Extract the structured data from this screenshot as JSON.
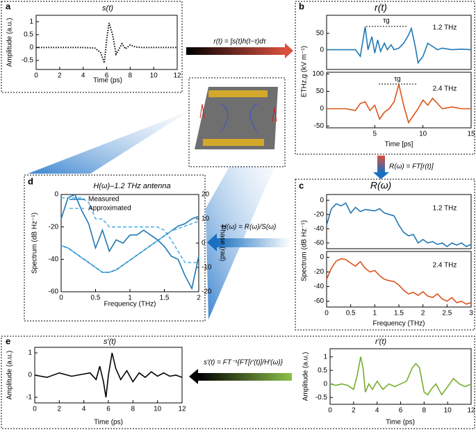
{
  "panel_labels": [
    "a",
    "b",
    "c",
    "d",
    "e"
  ],
  "equations": [
    "r(t) = ∫s(t)h(t−τ)dτ",
    "R(ω) = FT[r(t)]",
    "H(ω) = R(ω)/S(ω)",
    "s′(t) = FT⁻¹{FT[r′(t)]/H′(ω)}"
  ],
  "chart_data": [
    {
      "type": "line",
      "title": "s(t)",
      "xlabel": "Time (ps)",
      "ylabel": "Amplitude (a.u.)",
      "xlim": [
        0,
        12
      ],
      "ylim": [
        -0.85,
        1.25
      ],
      "xticks": [
        0,
        2,
        4,
        6,
        8,
        10,
        12
      ],
      "yticks": [
        -0.5,
        0,
        0.5,
        1
      ],
      "x": [
        0,
        1,
        2,
        3,
        4,
        5,
        5.5,
        5.8,
        6,
        6.2,
        6.5,
        6.8,
        7,
        7.3,
        7.6,
        8,
        8.5,
        9,
        10,
        11,
        12
      ],
      "series": [
        {
          "color": "#000000",
          "linestyle": "dotted",
          "values": [
            0,
            0,
            0,
            0,
            0,
            -0.02,
            -0.2,
            -0.6,
            0.3,
            0.95,
            0.5,
            -0.25,
            -0.1,
            0.15,
            -0.05,
            0.1,
            0.02,
            0,
            0,
            0,
            0
          ]
        }
      ]
    },
    {
      "type": "line",
      "title": "r(t)",
      "ylabel": "ETHz,g (kV m⁻¹)",
      "annotations": [
        "1.2 THz",
        "τg"
      ],
      "xlim": [
        0,
        15
      ],
      "ylim": [
        -60,
        105
      ],
      "yticks": [
        0,
        50
      ],
      "x": [
        0,
        1,
        2,
        3,
        3.5,
        4,
        4.3,
        4.7,
        5,
        5.3,
        5.6,
        6,
        6.3,
        6.7,
        7,
        7.5,
        8,
        8.5,
        8.8,
        9.2,
        9.5,
        10,
        10.5,
        11,
        11.5,
        12,
        13,
        14,
        15
      ],
      "series": [
        {
          "color": "#1f77b4",
          "values": [
            0,
            0,
            0,
            0,
            -20,
            70,
            0,
            40,
            -10,
            30,
            -5,
            20,
            0,
            15,
            0,
            5,
            20,
            45,
            65,
            10,
            -40,
            -20,
            20,
            10,
            0,
            5,
            0,
            2,
            0
          ]
        }
      ]
    },
    {
      "type": "line",
      "xlabel": "Time [ps]",
      "annotations": [
        "2.4 THz",
        "τg"
      ],
      "xlim": [
        0,
        15
      ],
      "ylim": [
        -55,
        105
      ],
      "xticks": [
        5,
        10,
        15
      ],
      "yticks": [
        -50,
        0,
        50,
        100
      ],
      "x": [
        0,
        2,
        3,
        3.5,
        4,
        4.5,
        5,
        5.5,
        6,
        6.5,
        7,
        7.5,
        8,
        8.5,
        9,
        9.5,
        10,
        10.5,
        11,
        11.5,
        12,
        13,
        14,
        15
      ],
      "series": [
        {
          "color": "#d95319",
          "values": [
            0,
            0,
            -5,
            15,
            20,
            -5,
            10,
            -30,
            -10,
            0,
            20,
            70,
            10,
            -40,
            -20,
            0,
            25,
            10,
            30,
            15,
            0,
            5,
            0,
            0
          ]
        }
      ]
    },
    {
      "type": "line",
      "title": "R(ω)",
      "ylabel": "Spectrum (dB Hz⁻¹)",
      "annotations": [
        "1.2 THz"
      ],
      "xlim": [
        0,
        3
      ],
      "ylim": [
        -68,
        8
      ],
      "yticks": [
        -60,
        -40,
        -20,
        0
      ],
      "x": [
        0,
        0.1,
        0.2,
        0.3,
        0.4,
        0.5,
        0.6,
        0.7,
        0.8,
        0.9,
        1,
        1.1,
        1.2,
        1.3,
        1.4,
        1.5,
        1.6,
        1.7,
        1.8,
        1.9,
        2,
        2.1,
        2.2,
        2.3,
        2.4,
        2.5,
        2.6,
        2.7,
        2.8,
        2.9,
        3
      ],
      "series": [
        {
          "color": "#1f77b4",
          "values": [
            -35,
            -12,
            -5,
            -8,
            -4,
            -18,
            -10,
            -16,
            -13,
            -14,
            -15,
            -12,
            -18,
            -20,
            -22,
            -35,
            -45,
            -50,
            -48,
            -60,
            -55,
            -60,
            -58,
            -62,
            -60,
            -65,
            -60,
            -63,
            -60,
            -65,
            -62
          ]
        }
      ]
    },
    {
      "type": "line",
      "xlabel": "Frequency (THz)",
      "annotations": [
        "2.4 THz"
      ],
      "xlim": [
        0,
        3
      ],
      "ylim": [
        -68,
        8
      ],
      "xticks": [
        0,
        0.5,
        1,
        1.5,
        2,
        2.5,
        3
      ],
      "yticks": [
        -60,
        -40,
        -20,
        0
      ],
      "x": [
        0,
        0.1,
        0.2,
        0.3,
        0.4,
        0.5,
        0.6,
        0.7,
        0.8,
        0.9,
        1,
        1.1,
        1.2,
        1.3,
        1.4,
        1.5,
        1.6,
        1.7,
        1.8,
        1.9,
        2,
        2.1,
        2.2,
        2.3,
        2.4,
        2.5,
        2.6,
        2.7,
        2.8,
        2.9,
        3
      ],
      "series": [
        {
          "color": "#d95319",
          "values": [
            -30,
            -15,
            -5,
            -2,
            -3,
            -8,
            -12,
            -6,
            -15,
            -20,
            -18,
            -25,
            -30,
            -32,
            -33,
            -38,
            -45,
            -50,
            -48,
            -52,
            -47,
            -53,
            -55,
            -50,
            -57,
            -60,
            -55,
            -62,
            -60,
            -64,
            -62
          ]
        }
      ]
    },
    {
      "type": "line",
      "title": "H(ω)–1.2 THz antenna",
      "xlabel": "Frequency (THz)",
      "ylabel": "Spectrum (dB Hz⁻¹)",
      "y2label": "Phase (rad)",
      "xlim": [
        0,
        2
      ],
      "ylim": [
        -60,
        0
      ],
      "y2lim": [
        -20,
        20
      ],
      "xticks": [
        0,
        0.5,
        1,
        1.5,
        2
      ],
      "yticks": [
        -60,
        -40,
        -20,
        0
      ],
      "y2ticks": [
        -20,
        -10,
        0,
        10,
        20
      ],
      "x": [
        0,
        0.1,
        0.2,
        0.3,
        0.4,
        0.5,
        0.6,
        0.7,
        0.8,
        0.9,
        1,
        1.1,
        1.2,
        1.3,
        1.4,
        1.5,
        1.6,
        1.7,
        1.8,
        1.9,
        2
      ],
      "series": [
        {
          "name": "Measured",
          "color": "#1f77b4",
          "values": [
            -15,
            -2,
            0,
            -10,
            -18,
            -33,
            -22,
            -35,
            -28,
            -30,
            -25,
            -25,
            -22,
            -25,
            -28,
            -32,
            -38,
            -40,
            -50,
            -58,
            -38
          ]
        },
        {
          "name": "Approximated",
          "color": "#4fb3e8",
          "linestyle": "dashed",
          "values": [
            -2,
            -2,
            -2,
            -2,
            -5,
            -15,
            -15,
            -20,
            -20,
            -20,
            -20,
            -20,
            -20,
            -20,
            -20,
            -22,
            -28,
            -35,
            -42,
            -42,
            -42
          ]
        },
        {
          "color": "#1f77b4",
          "axis": "y2",
          "values": [
            -1,
            -2,
            -4,
            -6,
            -8,
            -10,
            -12,
            -12,
            -11,
            -9,
            -7,
            -5,
            -3,
            -1,
            1,
            3,
            5,
            7,
            8,
            10,
            11
          ]
        },
        {
          "color": "#4fb3e8",
          "linestyle": "dashed",
          "axis": "y2",
          "values": [
            -1,
            -2,
            -4,
            -6,
            -8,
            -10,
            -12,
            -12,
            -11,
            -9,
            -7,
            -5,
            -3,
            -1,
            1,
            3,
            5,
            6,
            7,
            8,
            9
          ]
        }
      ]
    },
    {
      "type": "line",
      "title": "s′(t)",
      "xlabel": "Time (ps)",
      "ylabel": "Amplitude (a.u.)",
      "xlim": [
        0,
        12
      ],
      "ylim": [
        -1.25,
        1.25
      ],
      "xticks": [
        0,
        2,
        4,
        6,
        8,
        10,
        12
      ],
      "yticks": [
        -1,
        0,
        1
      ],
      "x": [
        0,
        1,
        2,
        3,
        4,
        4.5,
        5,
        5.3,
        5.6,
        5.8,
        6,
        6.3,
        6.6,
        7,
        7.5,
        8,
        8.5,
        9,
        9.5,
        10,
        10.5,
        11,
        11.5,
        12
      ],
      "series": [
        {
          "color": "#000000",
          "values": [
            0,
            -0.1,
            0.1,
            -0.05,
            0.05,
            0.1,
            -0.2,
            0.4,
            -0.3,
            -1,
            0,
            1,
            0.3,
            -0.2,
            0.2,
            -0.3,
            0.1,
            -0.1,
            0.15,
            -0.05,
            0.1,
            -0.05,
            0,
            -0.1
          ]
        }
      ]
    },
    {
      "type": "line",
      "title": "r′(t)",
      "xlabel": "Time (ps)",
      "ylabel": "Amplitude (a.u.)",
      "xlim": [
        0,
        12
      ],
      "ylim": [
        -0.75,
        1.3
      ],
      "xticks": [
        0,
        2,
        4,
        6,
        8,
        10,
        12
      ],
      "yticks": [
        -0.5,
        0,
        0.5,
        1
      ],
      "x": [
        0,
        0.5,
        1,
        1.5,
        2,
        2.3,
        2.6,
        2.8,
        3,
        3.3,
        3.6,
        4,
        4.5,
        5,
        5.5,
        6,
        6.5,
        7,
        7.3,
        7.6,
        8,
        8.3,
        8.6,
        9,
        9.5,
        10,
        10.5,
        11,
        11.5,
        12
      ],
      "series": [
        {
          "color": "#77ac30",
          "values": [
            0,
            -0.05,
            0,
            -0.05,
            -0.2,
            0.3,
            1,
            0.6,
            -0.3,
            0,
            -0.2,
            0.1,
            -0.2,
            0,
            -0.1,
            0,
            0.1,
            0.6,
            0.75,
            0.6,
            -0.3,
            -0.4,
            -0.2,
            0,
            -0.4,
            -0.1,
            0.2,
            0,
            -0.1,
            0
          ]
        }
      ]
    }
  ]
}
